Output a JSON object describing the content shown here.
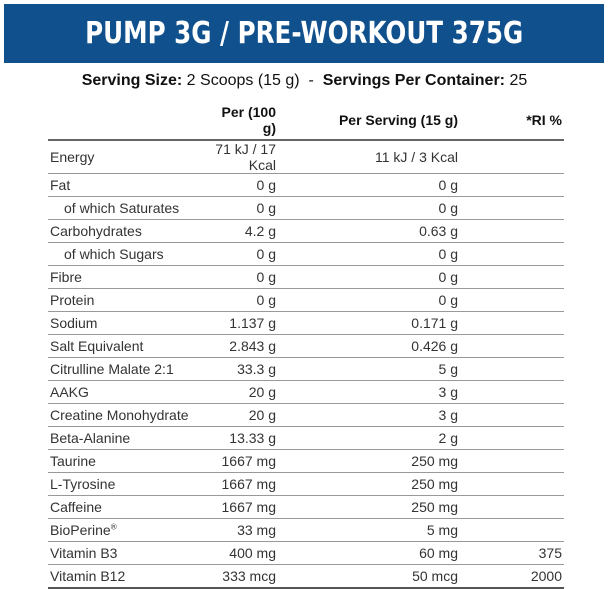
{
  "title": "PUMP 3G / PRE-WORKOUT 375G",
  "serving": {
    "size_label": "Serving Size:",
    "size_value": "2 Scoops (15 g)",
    "sep": "-",
    "per_container_label": "Servings Per Container:",
    "per_container_value": "25"
  },
  "headers": [
    "",
    "Per (100 g)",
    "Per Serving (15 g)",
    "*RI %"
  ],
  "rows": [
    {
      "name": "Energy",
      "per100": "71 kJ / 17 Kcal",
      "serving": "11 kJ / 3 Kcal",
      "ri": ""
    },
    {
      "name": "Fat",
      "per100": "0 g",
      "serving": "0 g",
      "ri": ""
    },
    {
      "name": "of which Saturates",
      "per100": "0 g",
      "serving": "0 g",
      "ri": "",
      "indent": true
    },
    {
      "name": "Carbohydrates",
      "per100": "4.2 g",
      "serving": "0.63 g",
      "ri": ""
    },
    {
      "name": "of which Sugars",
      "per100": "0 g",
      "serving": "0 g",
      "ri": "",
      "indent": true
    },
    {
      "name": "Fibre",
      "per100": "0 g",
      "serving": "0 g",
      "ri": ""
    },
    {
      "name": "Protein",
      "per100": "0 g",
      "serving": "0 g",
      "ri": ""
    },
    {
      "name": "Sodium",
      "per100": "1.137 g",
      "serving": "0.171 g",
      "ri": ""
    },
    {
      "name": "Salt Equivalent",
      "per100": "2.843 g",
      "serving": "0.426 g",
      "ri": ""
    },
    {
      "name": "Citrulline Malate 2:1",
      "per100": "33.3 g",
      "serving": "5 g",
      "ri": ""
    },
    {
      "name": "AAKG",
      "per100": "20 g",
      "serving": "3 g",
      "ri": ""
    },
    {
      "name": "Creatine Monohydrate",
      "per100": "20 g",
      "serving": "3 g",
      "ri": ""
    },
    {
      "name": "Beta-Alanine",
      "per100": "13.33 g",
      "serving": "2 g",
      "ri": ""
    },
    {
      "name": "Taurine",
      "per100": "1667 mg",
      "serving": "250 mg",
      "ri": ""
    },
    {
      "name": "L-Tyrosine",
      "per100": "1667 mg",
      "serving": "250 mg",
      "ri": ""
    },
    {
      "name": "Caffeine",
      "per100": "1667 mg",
      "serving": "250 mg",
      "ri": ""
    },
    {
      "name": "BioPerine",
      "sup": "®",
      "per100": "33 mg",
      "serving": "5 mg",
      "ri": ""
    },
    {
      "name": "Vitamin B3",
      "per100": "400 mg",
      "serving": "60 mg",
      "ri": "375"
    },
    {
      "name": "Vitamin B12",
      "per100": "333 mcg",
      "serving": "50 mcg",
      "ri": "2000"
    }
  ]
}
